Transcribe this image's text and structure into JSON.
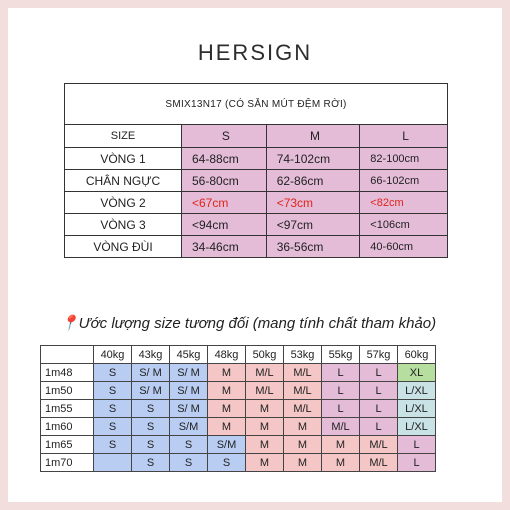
{
  "brand": {
    "logo_text": "HERSIGN"
  },
  "size_table": {
    "product_code": "SMIX13N17 (CÓ SẴN MÚT ĐỆM RỜI)",
    "header": [
      "SIZE",
      "S",
      "M",
      "L"
    ],
    "rows": [
      {
        "label": "VÒNG 1",
        "values": [
          "64-88cm",
          "74-102cm",
          "82-100cm"
        ]
      },
      {
        "label": "CHÂN NGỰC",
        "values": [
          "56-80cm",
          "62-86cm",
          "66-102cm"
        ]
      },
      {
        "label": "VÒNG 2",
        "values": [
          "<67cm",
          "<73cm",
          "<82cm"
        ]
      },
      {
        "label": "VÒNG 3",
        "values": [
          "<94cm",
          "<97cm",
          "<106cm"
        ]
      },
      {
        "label": "VÒNG ĐÙI",
        "values": [
          "34-46cm",
          "36-56cm",
          "40-60cm"
        ]
      }
    ]
  },
  "estimate": {
    "note": "📍Ước lượng size tương đối (mang tính chất tham khảo)",
    "weights": [
      "40kg",
      "43kg",
      "45kg",
      "48kg",
      "50kg",
      "53kg",
      "55kg",
      "57kg",
      "60kg"
    ],
    "rows": [
      {
        "height": "1m48",
        "cells": [
          "S",
          "S/ M",
          "S/ M",
          "M",
          "M/L",
          "M/L",
          "L",
          "L",
          "XL"
        ]
      },
      {
        "height": "1m50",
        "cells": [
          "S",
          "S/ M",
          "S/ M",
          "M",
          "M/L",
          "M/L",
          "L",
          "L",
          "L/XL"
        ]
      },
      {
        "height": "1m55",
        "cells": [
          "S",
          "S",
          "S/ M",
          "M",
          "M",
          "M/L",
          "L",
          "L",
          "L/XL"
        ]
      },
      {
        "height": "1m60",
        "cells": [
          "S",
          "S",
          "S/M",
          "M",
          "M",
          "M",
          "M/L",
          "L",
          "L/XL"
        ]
      },
      {
        "height": "1m65",
        "cells": [
          "S",
          "S",
          "S",
          "S/M",
          "M",
          "M",
          "M",
          "M/L",
          "L"
        ]
      },
      {
        "height": "1m70",
        "cells": [
          "",
          "S",
          "S",
          "S",
          "M",
          "M",
          "M",
          "M/L",
          "L"
        ]
      }
    ],
    "colors": {
      "blue": "#b9cdf3",
      "pink": "#f4c6c6",
      "violet": "#e4bcd8",
      "green": "#b6de9e",
      "teal": "#c8e2e6"
    }
  }
}
